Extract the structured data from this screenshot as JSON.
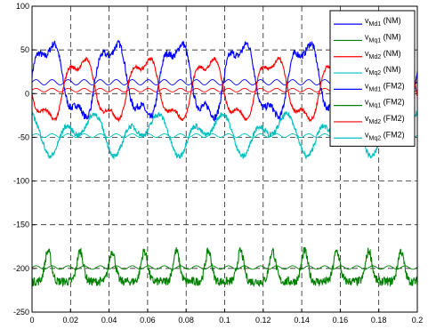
{
  "chart_data": {
    "type": "line",
    "title": "",
    "xlabel": "",
    "ylabel": "",
    "xlim": [
      0,
      0.2
    ],
    "ylim": [
      -250,
      100
    ],
    "grid": true,
    "grid_style": "dashed",
    "legend_position": "top-right",
    "x_ticks": [
      "0",
      "0.02",
      "0.04",
      "0.06",
      "0.08",
      "0.1",
      "0.12",
      "0.14",
      "0.16",
      "0.18",
      "0.2"
    ],
    "y_ticks": [
      "100",
      "50",
      "0",
      "-50",
      "-100",
      "-150",
      "-200",
      "-250"
    ],
    "series": [
      {
        "name_main": "v",
        "name_sub": "Md1",
        "name_suffix": " (NM)",
        "color": "#0000ff",
        "kind": "ripple",
        "mean": 13,
        "amp": 3
      },
      {
        "name_main": "v",
        "name_sub": "Mq1",
        "name_suffix": " (NM)",
        "color": "#008000",
        "kind": "ripple",
        "mean": -199,
        "amp": 2
      },
      {
        "name_main": "v",
        "name_sub": "Md2",
        "name_suffix": " (NM)",
        "color": "#ff0000",
        "kind": "ripple",
        "mean": 4,
        "amp": 2
      },
      {
        "name_main": "v",
        "name_sub": "Mq2",
        "name_suffix": " (NM)",
        "color": "#00bfbf",
        "kind": "ripple",
        "mean": -48,
        "amp": 2
      },
      {
        "name_main": "v",
        "name_sub": "Md1",
        "name_suffix": " (FM2)",
        "color": "#0000ff",
        "kind": "wave",
        "mean": 15,
        "amp": 45,
        "phase": 0.0,
        "noise": 4
      },
      {
        "name_main": "v",
        "name_sub": "Mq1",
        "name_suffix": " (FM2)",
        "color": "#008000",
        "kind": "spike",
        "mean": -215,
        "amp": 35,
        "phase": 0.0,
        "noise": 5
      },
      {
        "name_main": "v",
        "name_sub": "Md2",
        "name_suffix": " (FM2)",
        "color": "#ff0000",
        "kind": "wave",
        "mean": 5,
        "amp": 37,
        "phase": 0.5,
        "noise": 2
      },
      {
        "name_main": "v",
        "name_sub": "Mq2",
        "name_suffix": " (FM2)",
        "color": "#00bfbf",
        "kind": "dip",
        "mean": -35,
        "amp": 32,
        "phase": 0.15,
        "noise": 3
      }
    ],
    "period": 0.0333
  }
}
